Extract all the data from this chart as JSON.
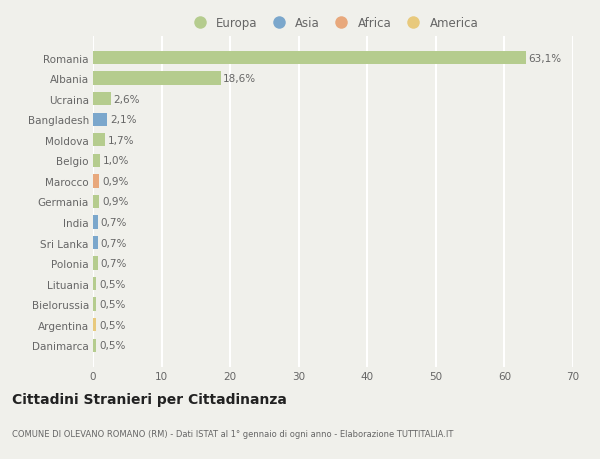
{
  "categories": [
    "Romania",
    "Albania",
    "Ucraina",
    "Bangladesh",
    "Moldova",
    "Belgio",
    "Marocco",
    "Germania",
    "India",
    "Sri Lanka",
    "Polonia",
    "Lituania",
    "Bielorussia",
    "Argentina",
    "Danimarca"
  ],
  "values": [
    63.1,
    18.6,
    2.6,
    2.1,
    1.7,
    1.0,
    0.9,
    0.9,
    0.7,
    0.7,
    0.7,
    0.5,
    0.5,
    0.5,
    0.5
  ],
  "labels": [
    "63,1%",
    "18,6%",
    "2,6%",
    "2,1%",
    "1,7%",
    "1,0%",
    "0,9%",
    "0,9%",
    "0,7%",
    "0,7%",
    "0,7%",
    "0,5%",
    "0,5%",
    "0,5%",
    "0,5%"
  ],
  "colors": [
    "#b5cc8e",
    "#b5cc8e",
    "#b5cc8e",
    "#7ba7cc",
    "#b5cc8e",
    "#b5cc8e",
    "#e8a87c",
    "#b5cc8e",
    "#7ba7cc",
    "#7ba7cc",
    "#b5cc8e",
    "#b5cc8e",
    "#b5cc8e",
    "#e8c97c",
    "#b5cc8e"
  ],
  "legend_labels": [
    "Europa",
    "Asia",
    "Africa",
    "America"
  ],
  "legend_colors": [
    "#b5cc8e",
    "#7ba7cc",
    "#e8a87c",
    "#e8c97c"
  ],
  "xlim": [
    0,
    70
  ],
  "xticks": [
    0,
    10,
    20,
    30,
    40,
    50,
    60,
    70
  ],
  "title": "Cittadini Stranieri per Cittadinanza",
  "subtitle": "COMUNE DI OLEVANO ROMANO (RM) - Dati ISTAT al 1° gennaio di ogni anno - Elaborazione TUTTITALIA.IT",
  "background_color": "#f0f0eb",
  "bar_height": 0.65,
  "grid_color": "#ffffff",
  "label_fontsize": 7.5,
  "tick_fontsize": 7.5,
  "title_fontsize": 10,
  "subtitle_fontsize": 6.0
}
